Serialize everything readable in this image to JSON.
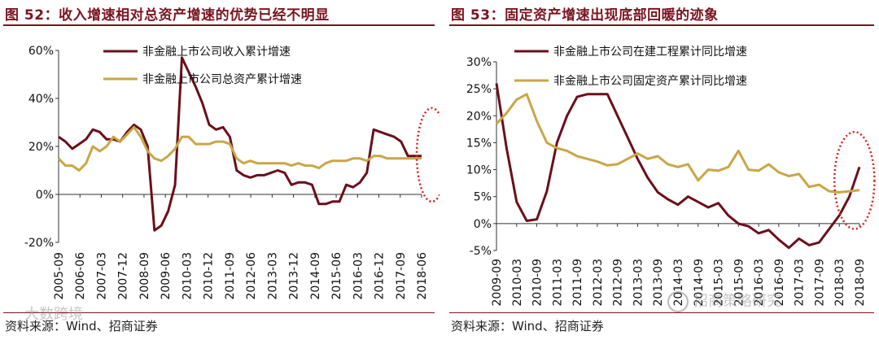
{
  "left": {
    "title": "图 52：收入增速相对总资产增速的优势已经不明显",
    "source": "资料来源：Wind、招商证券"
  },
  "right": {
    "title": "图 53：固定资产增速出现底部回暖的迹象",
    "source": "资料来源：Wind、招商证券"
  },
  "watermarks": {
    "left": "大数跨境",
    "right": "招商策略研究"
  },
  "colors": {
    "title": "#7a1420",
    "dark_series": "#6b0f1a",
    "gold_series": "#c9a646",
    "highlight_ellipse": "#d42020"
  },
  "chart_data": [
    {
      "type": "line",
      "title": "",
      "xlabel": "",
      "ylabel": "",
      "ylim": [
        -20,
        60
      ],
      "yticks": [
        -20,
        0,
        20,
        40,
        60
      ],
      "ytick_labels": [
        "-20%",
        "0%",
        "20%",
        "40%",
        "60%"
      ],
      "x_tick_labels": [
        "2005-09",
        "2006-06",
        "2007-03",
        "2007-12",
        "2008-09",
        "2009-06",
        "2010-03",
        "2010-12",
        "2011-09",
        "2012-06",
        "2013-03",
        "2013-12",
        "2014-09",
        "2015-06",
        "2016-03",
        "2016-12",
        "2017-09",
        "2018-06"
      ],
      "legend": "top-center",
      "grid": false,
      "highlight": {
        "shape": "ellipse",
        "style": "dotted",
        "x_from": 53,
        "x_to": 56,
        "y_from": -3,
        "y_to": 36
      },
      "series": [
        {
          "name": "非金融上市公司收入累计增速",
          "color": "#6b0f1a",
          "values": [
            24,
            22,
            19,
            21,
            23,
            27,
            26,
            23,
            23,
            22,
            26,
            29,
            27,
            20,
            -15,
            -13,
            -7,
            4,
            57,
            51,
            45,
            38,
            29,
            27,
            28,
            24,
            10,
            8,
            7,
            8,
            8,
            9,
            10,
            9,
            4,
            5,
            5,
            4,
            -4,
            -4,
            -3,
            -3,
            4,
            3,
            5,
            9,
            27,
            26,
            25,
            24,
            22,
            16,
            16,
            16
          ]
        },
        {
          "name": "非金融上市公司总资产累计增速",
          "color": "#c9a646",
          "values": [
            15,
            12,
            12,
            10,
            13,
            20,
            18,
            20,
            24,
            22,
            25,
            28,
            24,
            18,
            15,
            14,
            16,
            19,
            24,
            24,
            21,
            21,
            21,
            22,
            22,
            21,
            15,
            13,
            14,
            13,
            13,
            13,
            13,
            13,
            12,
            13,
            12,
            12,
            11,
            13,
            14,
            14,
            14,
            15,
            15,
            14,
            16,
            16,
            15,
            15,
            15,
            15,
            15,
            15
          ]
        }
      ]
    },
    {
      "type": "line",
      "title": "",
      "xlabel": "",
      "ylabel": "",
      "ylim": [
        -5,
        30
      ],
      "yticks": [
        -5,
        0,
        5,
        10,
        15,
        20,
        25,
        30
      ],
      "ytick_labels": [
        "-5%",
        "0%",
        "5%",
        "10%",
        "15%",
        "20%",
        "25%",
        "30%"
      ],
      "x_tick_labels": [
        "2009-09",
        "2010-03",
        "2010-09",
        "2011-03",
        "2011-09",
        "2012-03",
        "2012-09",
        "2013-03",
        "2013-09",
        "2014-03",
        "2014-09",
        "2015-03",
        "2015-09",
        "2016-03",
        "2016-09",
        "2017-03",
        "2017-09",
        "2018-03",
        "2018-09"
      ],
      "legend": "top-right",
      "grid": false,
      "highlight": {
        "shape": "ellipse",
        "style": "dotted",
        "x_from": 34,
        "x_to": 37,
        "y_from": -1,
        "y_to": 17
      },
      "series": [
        {
          "name": "非金融上市公司在建工程累计同比增速",
          "color": "#6b0f1a",
          "values": [
            26,
            14,
            4,
            0.5,
            0.8,
            6,
            15,
            20,
            23.5,
            24,
            24,
            24,
            20,
            16,
            12,
            8.5,
            5.8,
            4.5,
            3.5,
            5,
            4,
            3,
            3.8,
            1.5,
            0,
            -0.5,
            -1.8,
            -1.2,
            -3,
            -4.5,
            -2.8,
            -4,
            -3.5,
            -1,
            1.5,
            5,
            10.5
          ]
        },
        {
          "name": "非金融上市公司固定资产累计同比增速",
          "color": "#c9a646",
          "values": [
            18.5,
            20.5,
            23,
            24,
            19,
            15,
            14,
            13.5,
            12.5,
            12,
            11.5,
            10.8,
            11,
            12,
            13,
            12,
            12.5,
            11,
            10.5,
            11,
            8,
            10,
            9.8,
            10.5,
            13.5,
            10,
            9.8,
            11,
            9.5,
            8.8,
            9.2,
            6.8,
            7.2,
            6,
            5.8,
            6,
            6.2
          ]
        }
      ]
    }
  ]
}
